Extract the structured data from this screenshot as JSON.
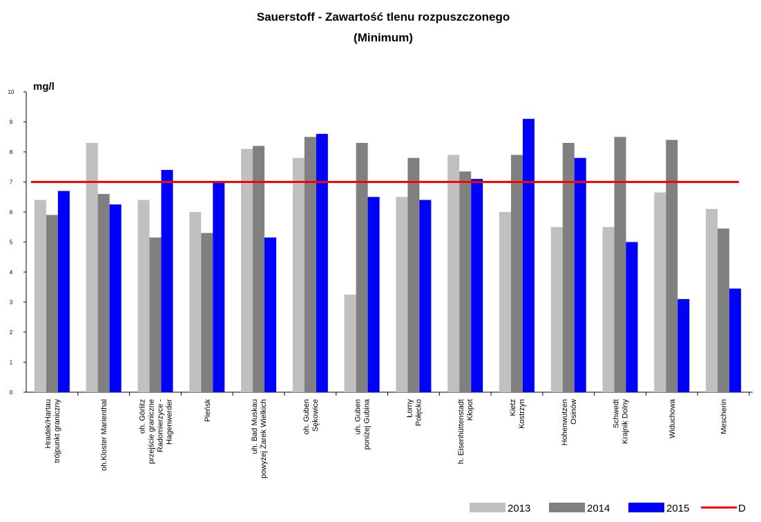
{
  "chart_data": {
    "type": "bar",
    "title": "Sauerstoff - Zawartość tlenu rozpuszczonego",
    "subtitle": "(Minimum)",
    "y_label": "mg/l",
    "categories": [
      [
        "Hradek/Hartau",
        "trójpunkt graniczny"
      ],
      [
        "oh.Kloster Marienthal"
      ],
      [
        "oh. Görlitz",
        "przejście graniczne",
        "Radomierzyce -",
        "Hagenwerder"
      ],
      [
        "Pieńsk"
      ],
      [
        "uh. Bad Muskau",
        "powyżej Żarek Wielkich"
      ],
      [
        "oh. Guben",
        "Sękowice"
      ],
      [
        "uh. Guben",
        "poniżej Gubina"
      ],
      [
        "Łomy",
        "Połęcko"
      ],
      [
        "h. Eisenhüttenstadt",
        "Kłopot"
      ],
      [
        "Kietz",
        "Kostrzyn"
      ],
      [
        "Hohenwutzen",
        "Osinów"
      ],
      [
        "Schwedt",
        "Krajnik Dolny"
      ],
      [
        "Widuchowa"
      ],
      [
        "Mescherin"
      ]
    ],
    "series": [
      {
        "name": "2013",
        "color": "#c0c0c0",
        "values": [
          6.4,
          8.3,
          6.4,
          6.0,
          8.1,
          7.8,
          3.25,
          6.5,
          7.9,
          6.0,
          5.5,
          5.5,
          6.65,
          6.1
        ]
      },
      {
        "name": "2014",
        "color": "#808080",
        "values": [
          5.9,
          6.6,
          5.15,
          5.3,
          8.2,
          8.5,
          8.3,
          7.8,
          7.35,
          7.9,
          8.3,
          8.5,
          8.4,
          5.45
        ]
      },
      {
        "name": "2015",
        "color": "#0000ff",
        "values": [
          6.7,
          6.25,
          7.4,
          7.0,
          5.15,
          8.6,
          6.5,
          6.4,
          7.1,
          9.1,
          7.8,
          5.0,
          3.1,
          3.45
        ]
      }
    ],
    "reference_line": {
      "name": "D",
      "value": 7,
      "color": "#ff0000"
    },
    "ylim": [
      0,
      10
    ],
    "yticks": [
      0,
      1,
      2,
      3,
      4,
      5,
      6,
      7,
      8,
      9,
      10
    ]
  }
}
